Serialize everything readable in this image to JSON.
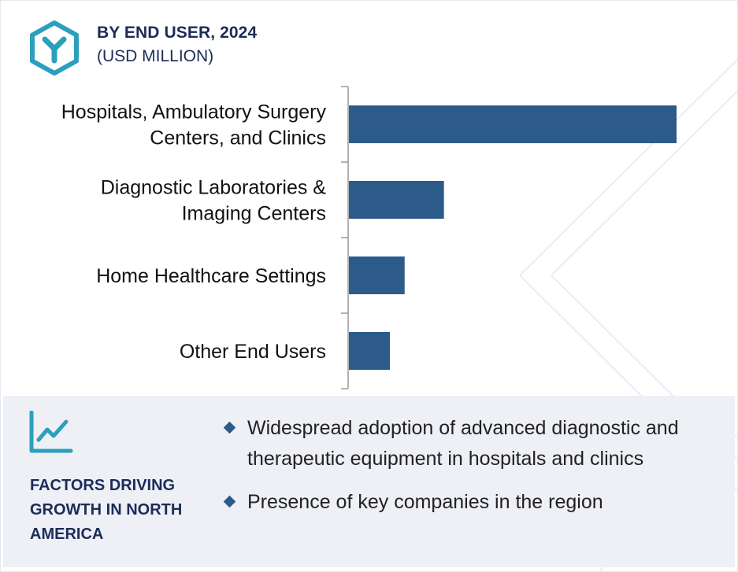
{
  "header": {
    "title": "BY END USER, 2024",
    "subtitle": "(USD MILLION)",
    "logo_icon": "hexagon-y-logo-icon",
    "accent_color": "#2d9fbe"
  },
  "chart_data": {
    "type": "bar",
    "orientation": "horizontal",
    "categories": [
      [
        "Hospitals, Ambulatory Surgery",
        "Centers, and Clinics"
      ],
      [
        "Diagnostic Laboratories &",
        "Imaging Centers"
      ],
      [
        "Home Healthcare Settings"
      ],
      [
        "Other End Users"
      ]
    ],
    "values": [
      100,
      29,
      17,
      12.5
    ],
    "xlim": [
      0,
      100
    ],
    "bar_color": "#2c5b8a",
    "grid": false,
    "title": "BY END USER, 2024",
    "subtitle": "(USD MILLION)"
  },
  "factors": {
    "icon": "line-chart-trend-icon",
    "title": "FACTORS DRIVING GROWTH IN NORTH AMERICA",
    "bullets": [
      "Widespread adoption of advanced diagnostic and therapeutic equipment in hospitals and clinics",
      "Presence of key companies in the region"
    ],
    "bullet_icon": "diamond-bullet-icon",
    "panel_color": "#eef0f6"
  }
}
